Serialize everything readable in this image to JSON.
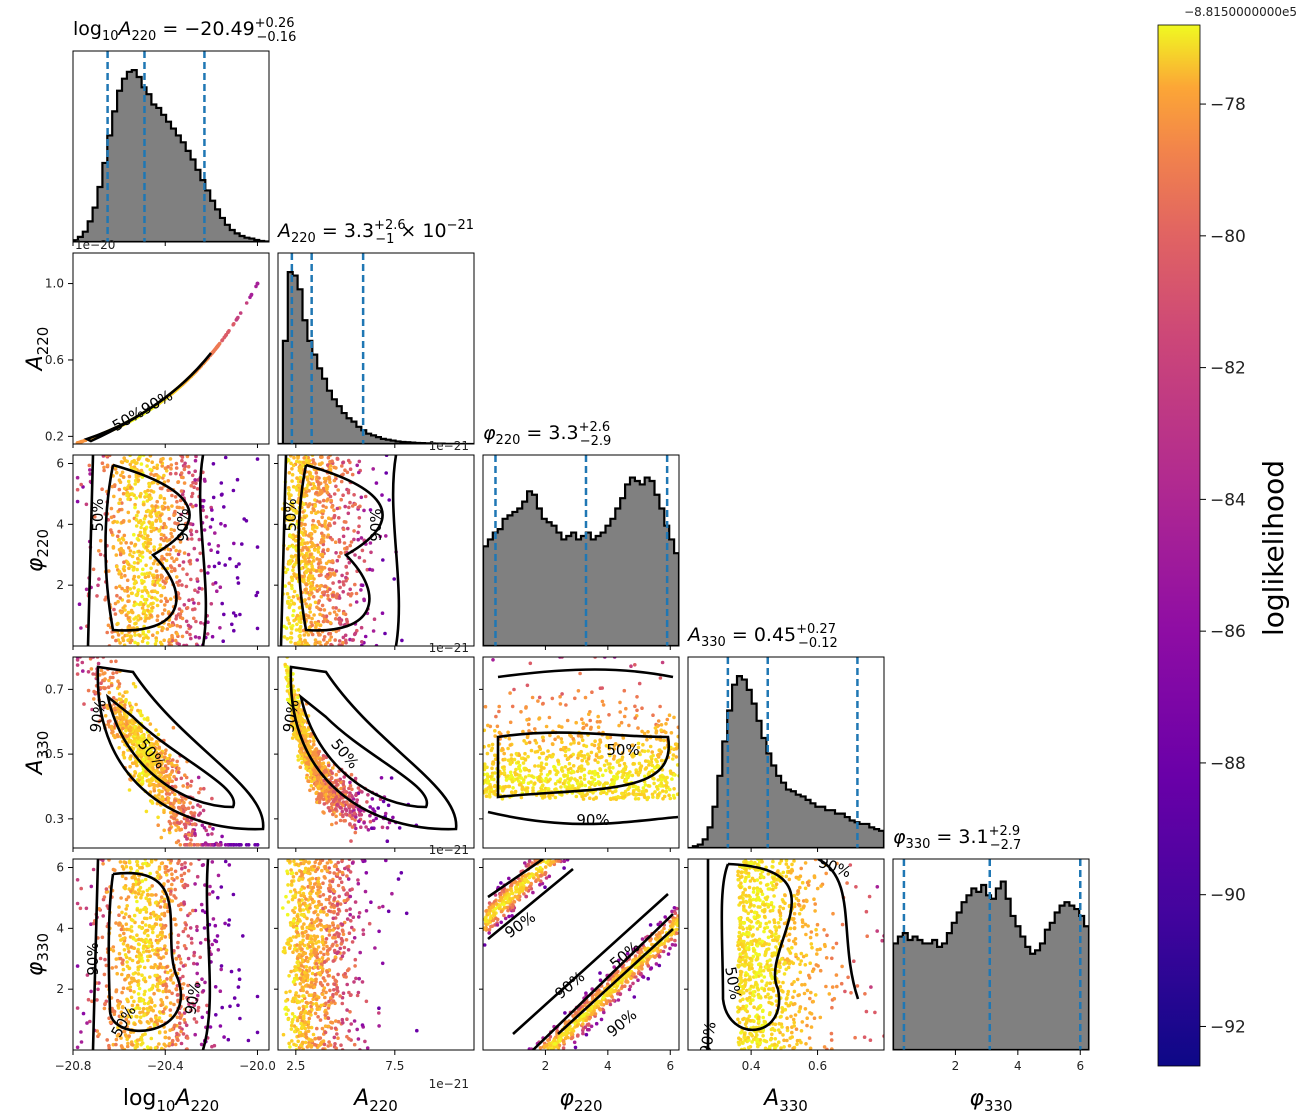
{
  "chart_data": {
    "type": "scatter",
    "kind": "corner plot",
    "colorbar": {
      "label": "loglikelihood",
      "offset_text": "−8.8150000000e5",
      "ticks": [
        "−78",
        "−80",
        "−82",
        "−84",
        "−86",
        "−88",
        "−90",
        "−92"
      ],
      "tick_values": [
        -78,
        -80,
        -82,
        -84,
        -86,
        -88,
        -90,
        -92
      ],
      "range": [
        -92.6,
        -76.8
      ],
      "colormap": "plasma"
    },
    "parameters": [
      {
        "key": "logA220",
        "axis_label_main": "log",
        "axis_label_sub": "10",
        "axis_label_var": "A",
        "axis_label_varsub": "220",
        "title_value": "−20.49",
        "title_plus": "+0.26",
        "title_minus": "−0.16",
        "title_suffix": "",
        "range": [
          -20.8,
          -19.95
        ],
        "quantiles": [
          -20.65,
          -20.49,
          -20.23
        ],
        "ticks": [
          -20.8,
          -20.4,
          -20.0
        ],
        "tick_labels": [
          "−20.8",
          "−20.4",
          "−20.0"
        ]
      },
      {
        "key": "A220",
        "axis_label_var": "A",
        "axis_label_varsub": "220",
        "title_value": "3.3",
        "title_plus": "+2.6",
        "title_minus": "−1",
        "title_suffix": "× 10",
        "title_exp": "−21",
        "range": [
          1.6,
          11.5
        ],
        "quantiles": [
          2.3,
          3.3,
          5.9
        ],
        "ticks": [
          2.5,
          7.5
        ],
        "tick_labels": [
          "2.5",
          "7.5"
        ],
        "offset_text": "1e−21"
      },
      {
        "key": "phi220",
        "axis_label_var": "φ",
        "axis_label_varsub": "220",
        "title_value": "3.3",
        "title_plus": "+2.6",
        "title_minus": "−2.9",
        "title_suffix": "",
        "range": [
          0,
          6.28
        ],
        "quantiles": [
          0.4,
          3.3,
          5.9
        ],
        "ticks": [
          2,
          4,
          6
        ],
        "tick_labels": [
          "2",
          "4",
          "6"
        ]
      },
      {
        "key": "A330",
        "axis_label_var": "A",
        "axis_label_varsub": "330",
        "title_value": "0.45",
        "title_plus": "+0.27",
        "title_minus": "−0.12",
        "title_suffix": "",
        "range": [
          0.21,
          0.8
        ],
        "quantiles": [
          0.33,
          0.45,
          0.72
        ],
        "ticks": [
          0.3,
          0.5,
          0.7
        ],
        "tick_labels": [
          "0.3",
          "0.5",
          "0.7"
        ],
        "x_ticks": [
          0.4,
          0.6
        ],
        "x_tick_labels": [
          "0.4",
          "0.6"
        ]
      },
      {
        "key": "phi330",
        "axis_label_var": "φ",
        "axis_label_varsub": "330",
        "title_value": "3.1",
        "title_plus": "+2.9",
        "title_minus": "−2.7",
        "title_suffix": "",
        "range": [
          0,
          6.28
        ],
        "quantiles": [
          0.35,
          3.1,
          6.0
        ],
        "ticks": [
          2,
          4,
          6
        ],
        "tick_labels": [
          "2",
          "4",
          "6"
        ]
      }
    ],
    "a220_y_ticks": [
      0.2,
      0.6,
      1.0
    ],
    "a220_y_tick_labels": [
      "0.2",
      "0.6",
      "1.0"
    ],
    "a220_y_offset": "1e−20",
    "histograms": {
      "logA220": [
        0.01,
        0.03,
        0.06,
        0.12,
        0.2,
        0.32,
        0.46,
        0.62,
        0.76,
        0.88,
        0.95,
        0.99,
        1.0,
        0.96,
        0.9,
        0.86,
        0.8,
        0.78,
        0.74,
        0.7,
        0.66,
        0.62,
        0.58,
        0.53,
        0.48,
        0.42,
        0.36,
        0.3,
        0.24,
        0.19,
        0.14,
        0.1,
        0.07,
        0.05,
        0.035,
        0.025,
        0.02,
        0.012,
        0.006,
        0.003
      ],
      "A220": [
        0.0,
        0.6,
        1.0,
        0.98,
        0.9,
        0.72,
        0.6,
        0.52,
        0.44,
        0.38,
        0.31,
        0.26,
        0.22,
        0.18,
        0.15,
        0.13,
        0.1,
        0.08,
        0.06,
        0.05,
        0.04,
        0.03,
        0.025,
        0.02,
        0.015,
        0.012,
        0.01,
        0.008,
        0.006,
        0.005,
        0.004,
        0.003,
        0.002,
        0.002,
        0.001,
        0.001,
        0.0,
        0.0,
        0.0,
        0.0
      ],
      "phi220": [
        0.58,
        0.62,
        0.66,
        0.68,
        0.74,
        0.76,
        0.78,
        0.8,
        0.84,
        0.9,
        0.88,
        0.8,
        0.74,
        0.72,
        0.7,
        0.66,
        0.62,
        0.64,
        0.66,
        0.62,
        0.64,
        0.66,
        0.62,
        0.64,
        0.66,
        0.7,
        0.74,
        0.8,
        0.86,
        0.94,
        0.98,
        0.96,
        0.94,
        0.98,
        0.96,
        0.88,
        0.8,
        0.7,
        0.62,
        0.54
      ],
      "A330": [
        0.0,
        0.01,
        0.02,
        0.05,
        0.12,
        0.24,
        0.42,
        0.62,
        0.8,
        0.95,
        1.0,
        0.98,
        0.92,
        0.84,
        0.74,
        0.64,
        0.55,
        0.48,
        0.42,
        0.38,
        0.34,
        0.33,
        0.31,
        0.3,
        0.28,
        0.26,
        0.24,
        0.24,
        0.22,
        0.22,
        0.2,
        0.2,
        0.18,
        0.16,
        0.15,
        0.14,
        0.14,
        0.12,
        0.11,
        0.1
      ],
      "phi330": [
        0.62,
        0.66,
        0.68,
        0.64,
        0.66,
        0.64,
        0.62,
        0.62,
        0.64,
        0.6,
        0.62,
        0.68,
        0.74,
        0.8,
        0.86,
        0.9,
        0.94,
        0.92,
        0.96,
        0.9,
        0.88,
        0.94,
        0.98,
        0.88,
        0.78,
        0.72,
        0.66,
        0.6,
        0.56,
        0.58,
        0.62,
        0.7,
        0.74,
        0.8,
        0.84,
        0.86,
        0.84,
        0.82,
        0.78,
        0.72
      ]
    },
    "contour_labels": [
      "50%",
      "90%"
    ]
  }
}
